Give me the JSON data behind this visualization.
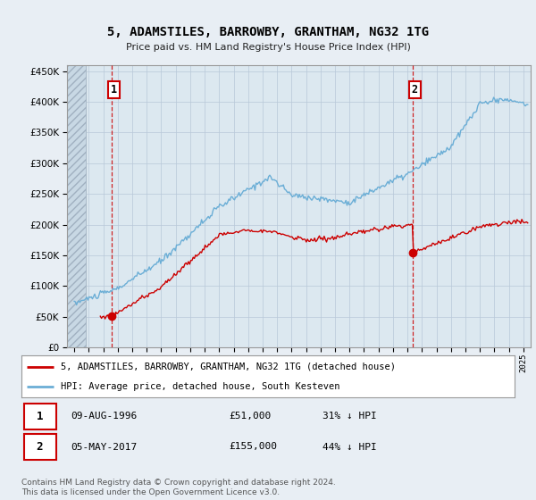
{
  "title": "5, ADAMSTILES, BARROWBY, GRANTHAM, NG32 1TG",
  "subtitle": "Price paid vs. HM Land Registry's House Price Index (HPI)",
  "ytick_values": [
    0,
    50000,
    100000,
    150000,
    200000,
    250000,
    300000,
    350000,
    400000,
    450000
  ],
  "ylim": [
    0,
    460000
  ],
  "xlim_start": 1993.5,
  "xlim_end": 2025.5,
  "hpi_color": "#6baed6",
  "price_color": "#cc0000",
  "sale1_year": 1996.6,
  "sale1_price": 51000,
  "sale2_year": 2017.35,
  "sale2_price": 155000,
  "legend_label1": "5, ADAMSTILES, BARROWBY, GRANTHAM, NG32 1TG (detached house)",
  "legend_label2": "HPI: Average price, detached house, South Kesteven",
  "table_row1": [
    "1",
    "09-AUG-1996",
    "£51,000",
    "31% ↓ HPI"
  ],
  "table_row2": [
    "2",
    "05-MAY-2017",
    "£155,000",
    "44% ↓ HPI"
  ],
  "footnote": "Contains HM Land Registry data © Crown copyright and database right 2024.\nThis data is licensed under the Open Government Licence v3.0.",
  "background_color": "#e8eef4",
  "plot_bg_color": "#dce8f0",
  "grid_color": "#b8c8d8",
  "hatch_color": "#c0ccd8"
}
